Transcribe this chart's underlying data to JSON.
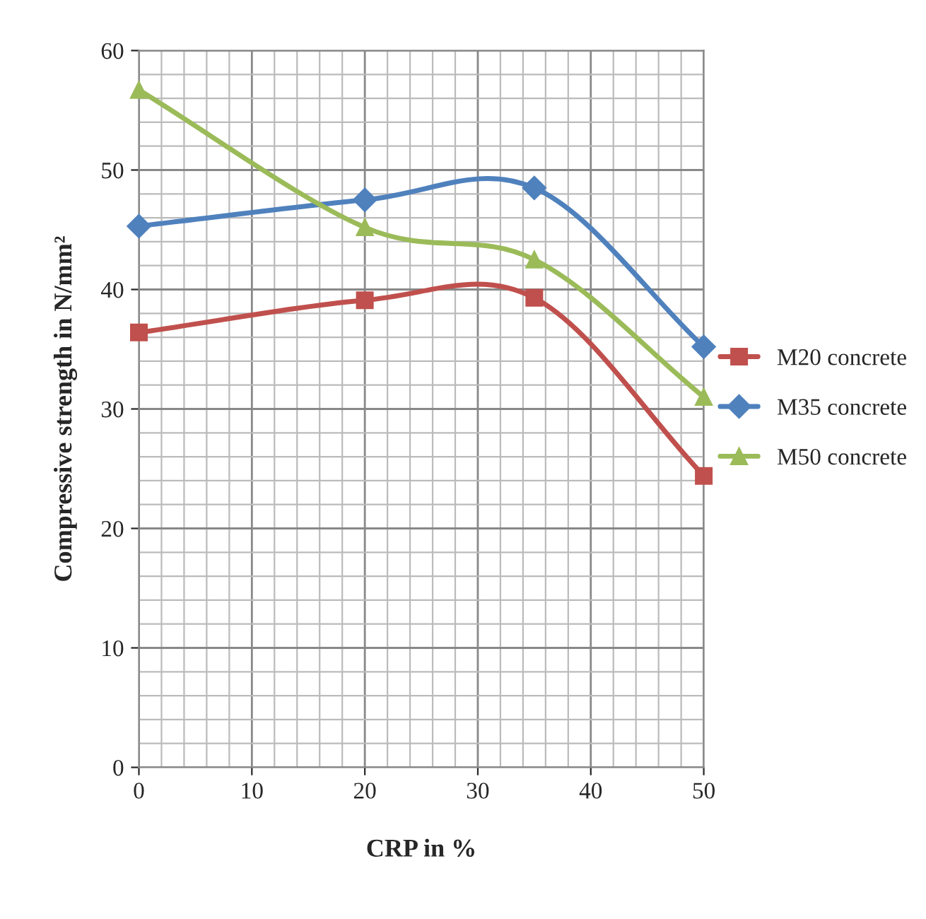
{
  "chart_data": {
    "type": "line",
    "xlabel": "CRP in %",
    "ylabel": "Compressive strength in N/mm²",
    "x": [
      0,
      20,
      35,
      50
    ],
    "series": [
      {
        "name": "M20 concrete",
        "color": "#c0504d",
        "marker": "square",
        "values": [
          36.4,
          39.1,
          39.3,
          24.4
        ]
      },
      {
        "name": "M35 concrete",
        "color": "#4f81bd",
        "marker": "diamond",
        "values": [
          45.3,
          47.5,
          48.5,
          35.2
        ]
      },
      {
        "name": "M50 concrete",
        "color": "#9bbb59",
        "marker": "triangle",
        "values": [
          56.7,
          45.2,
          42.5,
          31.0
        ]
      }
    ],
    "xlim": [
      0,
      50
    ],
    "xticks": [
      0,
      10,
      20,
      30,
      40,
      50
    ],
    "ylim": [
      0,
      60
    ],
    "yticks": [
      0,
      10,
      20,
      30,
      40,
      50,
      60
    ],
    "grid": true,
    "legend": "right",
    "line_style": "solid"
  }
}
